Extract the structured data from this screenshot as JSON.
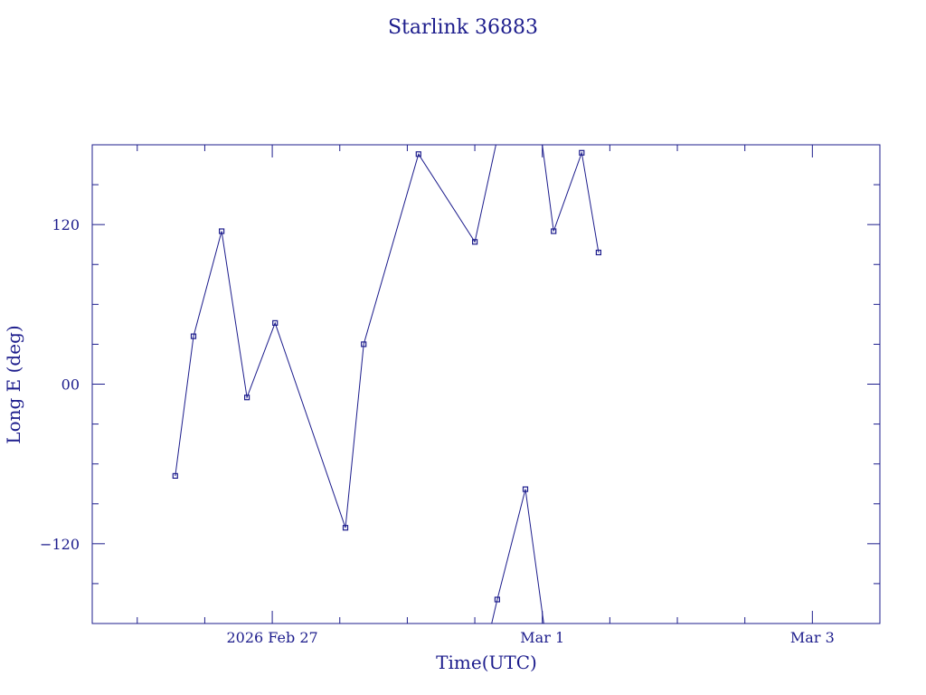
{
  "chart_data": {
    "type": "line",
    "title": "Starlink 36883",
    "xlabel": "Time(UTC)",
    "ylabel": "Long E (deg)",
    "x_unit": "days",
    "xlim": [
      "2026-02-25T16:00",
      "2026-03-03T12:00"
    ],
    "ylim": [
      -180,
      180
    ],
    "x_major_ticks": [
      {
        "at": "2026-02-27T00:00",
        "label": "2026 Feb 27"
      },
      {
        "at": "2026-03-01T00:00",
        "label": "Mar  1"
      },
      {
        "at": "2026-03-03T00:00",
        "label": "Mar  3"
      }
    ],
    "x_minor_ticks": [
      "2026-02-26T00:00",
      "2026-02-26T12:00",
      "2026-02-27T12:00",
      "2026-02-28T00:00",
      "2026-02-28T12:00",
      "2026-03-01T12:00",
      "2026-03-02T00:00",
      "2026-03-02T12:00",
      "2026-03-03T12:00"
    ],
    "y_major_ticks": [
      {
        "at": 120,
        "label": "120"
      },
      {
        "at": 0,
        "label": "00"
      },
      {
        "at": -120,
        "label": "−120"
      }
    ],
    "y_minor_ticks": [
      -150,
      -90,
      -60,
      -30,
      30,
      60,
      90,
      150
    ],
    "segments": [
      [
        {
          "x": "2026-02-26T06:45",
          "y": -69
        },
        {
          "x": "2026-02-26T10:00",
          "y": 36
        },
        {
          "x": "2026-02-26T15:00",
          "y": 115
        },
        {
          "x": "2026-02-26T19:30",
          "y": -10
        },
        {
          "x": "2026-02-27T00:30",
          "y": 46
        },
        {
          "x": "2026-02-27T13:00",
          "y": -108
        },
        {
          "x": "2026-02-27T16:15",
          "y": 30
        },
        {
          "x": "2026-02-28T02:00",
          "y": 173
        },
        {
          "x": "2026-02-28T12:00",
          "y": 107
        },
        {
          "x": "2026-02-28T15:45",
          "y": 180
        }
      ],
      [
        {
          "x": "2026-02-28T15:00",
          "y": -180
        },
        {
          "x": "2026-02-28T16:00",
          "y": -162
        },
        {
          "x": "2026-02-28T21:00",
          "y": -79
        },
        {
          "x": "2026-02-29T00:15",
          "y": -180
        }
      ],
      [
        {
          "x": "2026-02-29T00:00",
          "y": 180
        },
        {
          "x": "2026-02-29T02:00",
          "y": 115
        },
        {
          "x": "2026-02-29T07:00",
          "y": 174
        },
        {
          "x": "2026-02-29T10:00",
          "y": 99
        }
      ]
    ],
    "grid": false,
    "legend": "none"
  }
}
